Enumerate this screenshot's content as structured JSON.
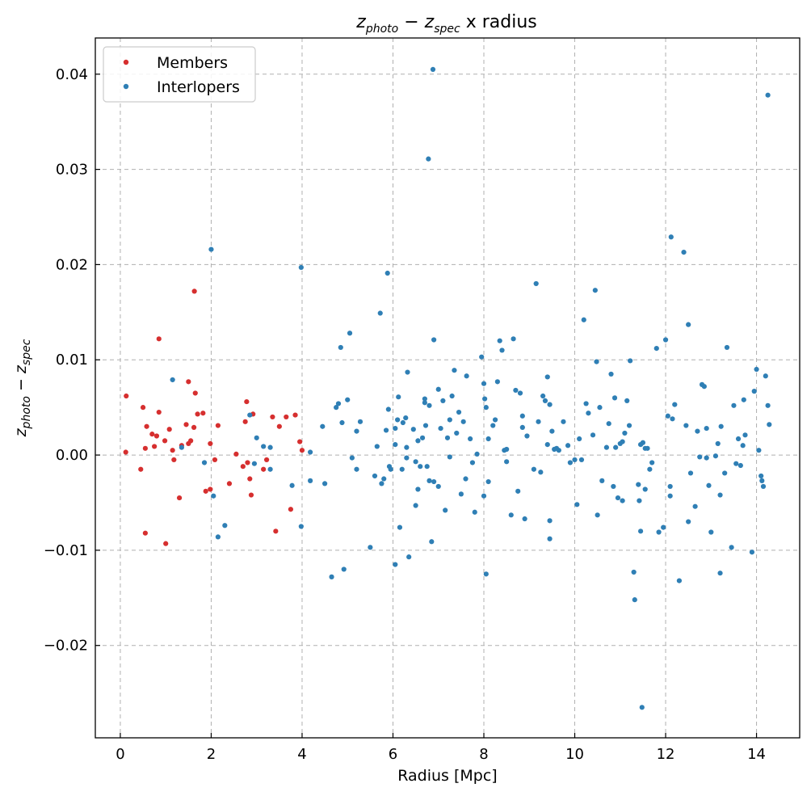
{
  "chart_data": {
    "type": "scatter",
    "title_parts": {
      "z1": "z",
      "s1": "photo",
      "op": " − ",
      "z2": "z",
      "s2": "spec",
      "rest": " x radius"
    },
    "xlabel": "Radius [Mpc]",
    "ylabel_parts": {
      "z1": "z",
      "s1": "photo",
      "op": " − ",
      "z2": "z",
      "s2": "spec"
    },
    "xlim": [
      -0.55,
      14.95
    ],
    "ylim": [
      -0.0297,
      0.0438
    ],
    "xticks": [
      0,
      2,
      4,
      6,
      8,
      10,
      12,
      14
    ],
    "xtick_labels": [
      "0",
      "2",
      "4",
      "6",
      "8",
      "10",
      "12",
      "14"
    ],
    "yticks": [
      -0.02,
      -0.01,
      0.0,
      0.01,
      0.02,
      0.03,
      0.04
    ],
    "ytick_labels": [
      "−0.02",
      "−0.01",
      "0.00",
      "0.01",
      "0.02",
      "0.03",
      "0.04"
    ],
    "grid": true,
    "legend_position": "top-left",
    "series": [
      {
        "name": "Members",
        "color": "#d62f2f",
        "points": [
          [
            0.13,
            0.0062
          ],
          [
            0.12,
            0.0003
          ],
          [
            0.5,
            0.005
          ],
          [
            0.45,
            -0.0015
          ],
          [
            0.55,
            0.0007
          ],
          [
            0.58,
            0.003
          ],
          [
            0.55,
            -0.0082
          ],
          [
            0.7,
            0.0022
          ],
          [
            0.75,
            0.0009
          ],
          [
            0.8,
            0.002
          ],
          [
            0.85,
            0.0045
          ],
          [
            0.85,
            0.0122
          ],
          [
            0.98,
            0.0015
          ],
          [
            1.0,
            -0.0093
          ],
          [
            1.08,
            0.0027
          ],
          [
            1.15,
            0.0005
          ],
          [
            1.18,
            -0.0005
          ],
          [
            1.3,
            -0.0045
          ],
          [
            1.35,
            0.001
          ],
          [
            1.45,
            0.0032
          ],
          [
            1.5,
            0.0012
          ],
          [
            1.5,
            0.0077
          ],
          [
            1.55,
            0.0015
          ],
          [
            1.62,
            0.0029
          ],
          [
            1.63,
            0.0172
          ],
          [
            1.65,
            0.0065
          ],
          [
            1.7,
            0.0043
          ],
          [
            1.82,
            0.0044
          ],
          [
            1.88,
            -0.0038
          ],
          [
            1.98,
            -0.0036
          ],
          [
            1.98,
            0.0012
          ],
          [
            2.08,
            -0.0005
          ],
          [
            2.15,
            0.0031
          ],
          [
            2.4,
            -0.003
          ],
          [
            2.55,
            0.0001
          ],
          [
            2.7,
            -0.0012
          ],
          [
            2.75,
            0.0035
          ],
          [
            2.78,
            0.0056
          ],
          [
            2.8,
            -0.0008
          ],
          [
            2.85,
            -0.0025
          ],
          [
            2.88,
            -0.0042
          ],
          [
            2.92,
            0.0043
          ],
          [
            3.15,
            -0.0015
          ],
          [
            3.22,
            -0.0005
          ],
          [
            3.35,
            0.004
          ],
          [
            3.42,
            -0.008
          ],
          [
            3.5,
            0.003
          ],
          [
            3.65,
            0.004
          ],
          [
            3.75,
            -0.0057
          ],
          [
            3.85,
            0.0042
          ],
          [
            3.95,
            0.0014
          ],
          [
            4.0,
            0.0005
          ]
        ]
      },
      {
        "name": "Interlopers",
        "color": "#2f7fb5",
        "points": [
          [
            1.15,
            0.0079
          ],
          [
            1.35,
            0.0008
          ],
          [
            1.85,
            -0.0008
          ],
          [
            2.0,
            0.0216
          ],
          [
            2.05,
            -0.0043
          ],
          [
            2.15,
            -0.0086
          ],
          [
            2.3,
            -0.0074
          ],
          [
            2.85,
            0.0042
          ],
          [
            2.95,
            -0.0009
          ],
          [
            3.0,
            0.0018
          ],
          [
            3.15,
            0.0009
          ],
          [
            3.3,
            -0.0015
          ],
          [
            3.3,
            0.0008
          ],
          [
            3.78,
            -0.0032
          ],
          [
            3.98,
            0.0197
          ],
          [
            3.98,
            -0.0075
          ],
          [
            4.18,
            0.0003
          ],
          [
            4.18,
            -0.0027
          ],
          [
            4.45,
            0.003
          ],
          [
            4.5,
            -0.003
          ],
          [
            4.65,
            -0.0128
          ],
          [
            4.75,
            0.005
          ],
          [
            4.8,
            0.0054
          ],
          [
            4.85,
            0.0113
          ],
          [
            4.88,
            0.0034
          ],
          [
            4.92,
            -0.012
          ],
          [
            5.0,
            0.0058
          ],
          [
            5.05,
            0.0128
          ],
          [
            5.1,
            -0.0003
          ],
          [
            5.2,
            0.0025
          ],
          [
            5.2,
            -0.0015
          ],
          [
            5.28,
            0.0035
          ],
          [
            5.5,
            -0.0097
          ],
          [
            5.6,
            -0.0022
          ],
          [
            5.65,
            0.0009
          ],
          [
            5.72,
            0.0149
          ],
          [
            5.75,
            -0.003
          ],
          [
            5.8,
            -0.0025
          ],
          [
            5.85,
            0.0026
          ],
          [
            5.88,
            0.0191
          ],
          [
            5.9,
            0.0048
          ],
          [
            5.92,
            -0.0012
          ],
          [
            5.95,
            -0.0015
          ],
          [
            6.05,
            0.0028
          ],
          [
            6.05,
            -0.0115
          ],
          [
            6.05,
            0.0011
          ],
          [
            6.1,
            0.0037
          ],
          [
            6.12,
            0.0061
          ],
          [
            6.15,
            -0.0076
          ],
          [
            6.2,
            -0.0015
          ],
          [
            6.22,
            0.0034
          ],
          [
            6.28,
            0.0039
          ],
          [
            6.3,
            0.0008
          ],
          [
            6.3,
            -0.0003
          ],
          [
            6.32,
            0.0087
          ],
          [
            6.35,
            -0.0107
          ],
          [
            6.45,
            0.0027
          ],
          [
            6.5,
            -0.0053
          ],
          [
            6.5,
            -0.0007
          ],
          [
            6.55,
            -0.0036
          ],
          [
            6.55,
            0.0015
          ],
          [
            6.6,
            -0.0012
          ],
          [
            6.65,
            0.0018
          ],
          [
            6.7,
            0.0055
          ],
          [
            6.7,
            0.0059
          ],
          [
            6.72,
            0.0031
          ],
          [
            6.75,
            -0.0012
          ],
          [
            6.78,
            0.0311
          ],
          [
            6.8,
            0.0052
          ],
          [
            6.8,
            -0.0027
          ],
          [
            6.85,
            -0.0091
          ],
          [
            6.88,
            0.0405
          ],
          [
            6.9,
            0.0121
          ],
          [
            6.9,
            -0.0028
          ],
          [
            7.0,
            0.0069
          ],
          [
            7.0,
            -0.0033
          ],
          [
            7.05,
            0.0028
          ],
          [
            7.1,
            0.0057
          ],
          [
            7.15,
            -0.0058
          ],
          [
            7.2,
            0.0018
          ],
          [
            7.25,
            -0.0002
          ],
          [
            7.25,
            0.0037
          ],
          [
            7.3,
            0.0062
          ],
          [
            7.35,
            0.0089
          ],
          [
            7.4,
            0.0023
          ],
          [
            7.45,
            0.0045
          ],
          [
            7.5,
            -0.0041
          ],
          [
            7.55,
            0.0035
          ],
          [
            7.6,
            -0.0025
          ],
          [
            7.62,
            0.0083
          ],
          [
            7.7,
            0.0017
          ],
          [
            7.75,
            -0.0008
          ],
          [
            7.8,
            -0.006
          ],
          [
            7.85,
            0.0001
          ],
          [
            7.95,
            0.0103
          ],
          [
            8.0,
            0.0075
          ],
          [
            8.0,
            -0.0043
          ],
          [
            8.02,
            0.0059
          ],
          [
            8.05,
            0.005
          ],
          [
            8.05,
            -0.0125
          ],
          [
            8.1,
            0.0017
          ],
          [
            8.1,
            -0.0028
          ],
          [
            8.2,
            0.0031
          ],
          [
            8.25,
            0.0037
          ],
          [
            8.3,
            0.0077
          ],
          [
            8.35,
            0.012
          ],
          [
            8.4,
            0.011
          ],
          [
            8.45,
            0.0005
          ],
          [
            8.5,
            -0.0007
          ],
          [
            8.6,
            -0.0063
          ],
          [
            8.65,
            0.0122
          ],
          [
            8.7,
            0.0068
          ],
          [
            8.75,
            -0.0038
          ],
          [
            8.8,
            0.0065
          ],
          [
            8.85,
            0.0029
          ],
          [
            8.85,
            0.0041
          ],
          [
            8.9,
            -0.0067
          ],
          [
            8.95,
            0.002
          ],
          [
            9.1,
            -0.0015
          ],
          [
            9.15,
            0.018
          ],
          [
            9.2,
            0.0035
          ],
          [
            9.25,
            -0.0018
          ],
          [
            9.3,
            0.0062
          ],
          [
            9.35,
            0.0057
          ],
          [
            9.4,
            0.0082
          ],
          [
            9.4,
            0.0011
          ],
          [
            9.45,
            0.0053
          ],
          [
            9.45,
            -0.0069
          ],
          [
            9.45,
            -0.0088
          ],
          [
            9.5,
            0.0025
          ],
          [
            9.55,
            0.0006
          ],
          [
            9.65,
            0.0005
          ],
          [
            9.75,
            0.0035
          ],
          [
            9.85,
            0.001
          ],
          [
            9.9,
            -0.0008
          ],
          [
            10.0,
            -0.0005
          ],
          [
            10.05,
            -0.0052
          ],
          [
            10.1,
            0.0017
          ],
          [
            10.15,
            -0.0005
          ],
          [
            10.2,
            0.0142
          ],
          [
            10.25,
            0.0054
          ],
          [
            10.3,
            0.0044
          ],
          [
            10.4,
            0.0021
          ],
          [
            10.45,
            0.0173
          ],
          [
            10.48,
            0.0098
          ],
          [
            10.5,
            -0.0063
          ],
          [
            10.55,
            0.005
          ],
          [
            10.6,
            -0.0027
          ],
          [
            10.7,
            0.0008
          ],
          [
            10.75,
            0.0033
          ],
          [
            10.8,
            0.0085
          ],
          [
            10.85,
            -0.0033
          ],
          [
            10.88,
            0.006
          ],
          [
            10.9,
            0.0008
          ],
          [
            10.95,
            -0.0045
          ],
          [
            11.0,
            0.0012
          ],
          [
            11.05,
            0.0014
          ],
          [
            11.05,
            -0.0048
          ],
          [
            11.1,
            0.0023
          ],
          [
            11.15,
            0.0057
          ],
          [
            11.2,
            0.0031
          ],
          [
            11.22,
            0.0099
          ],
          [
            11.3,
            -0.0123
          ],
          [
            11.32,
            -0.0152
          ],
          [
            11.4,
            -0.0031
          ],
          [
            11.42,
            -0.0048
          ],
          [
            11.45,
            0.0011
          ],
          [
            11.45,
            -0.008
          ],
          [
            11.48,
            -0.0265
          ],
          [
            11.5,
            0.0013
          ],
          [
            11.55,
            -0.0036
          ],
          [
            11.6,
            0.0007
          ],
          [
            11.65,
            -0.0015
          ],
          [
            11.7,
            -0.0008
          ],
          [
            11.8,
            0.0112
          ],
          [
            11.85,
            -0.0081
          ],
          [
            11.95,
            -0.0076
          ],
          [
            12.0,
            0.0121
          ],
          [
            12.05,
            0.0041
          ],
          [
            12.1,
            -0.0033
          ],
          [
            12.1,
            -0.0043
          ],
          [
            12.12,
            0.0229
          ],
          [
            12.15,
            0.0038
          ],
          [
            12.2,
            0.0053
          ],
          [
            12.3,
            -0.0132
          ],
          [
            12.4,
            0.0213
          ],
          [
            12.45,
            0.0031
          ],
          [
            12.5,
            0.0137
          ],
          [
            12.5,
            -0.007
          ],
          [
            12.55,
            -0.0019
          ],
          [
            12.7,
            0.0025
          ],
          [
            12.75,
            -0.0002
          ],
          [
            12.8,
            0.0074
          ],
          [
            12.85,
            0.0072
          ],
          [
            12.9,
            0.0028
          ],
          [
            12.9,
            -0.0003
          ],
          [
            12.95,
            -0.0032
          ],
          [
            13.0,
            -0.0081
          ],
          [
            13.1,
            -0.0001
          ],
          [
            13.15,
            0.0012
          ],
          [
            13.2,
            -0.0042
          ],
          [
            13.22,
            0.003
          ],
          [
            13.3,
            -0.0019
          ],
          [
            13.35,
            0.0113
          ],
          [
            13.5,
            0.0052
          ],
          [
            13.55,
            -0.0009
          ],
          [
            13.6,
            0.0017
          ],
          [
            13.65,
            -0.0011
          ],
          [
            13.7,
            0.001
          ],
          [
            13.72,
            0.0058
          ],
          [
            13.75,
            0.0021
          ],
          [
            13.9,
            -0.0102
          ],
          [
            13.95,
            0.0067
          ],
          [
            14.0,
            0.009
          ],
          [
            14.05,
            0.0005
          ],
          [
            14.1,
            -0.0022
          ],
          [
            14.12,
            -0.0027
          ],
          [
            14.15,
            -0.0033
          ],
          [
            14.2,
            0.0083
          ],
          [
            14.25,
            0.0052
          ],
          [
            14.25,
            0.0378
          ],
          [
            14.28,
            0.0032
          ],
          [
            13.45,
            -0.0097
          ],
          [
            13.2,
            -0.0124
          ],
          [
            12.65,
            -0.0054
          ],
          [
            11.55,
            0.0007
          ],
          [
            9.6,
            0.0007
          ],
          [
            8.5,
            0.0006
          ]
        ]
      }
    ]
  }
}
